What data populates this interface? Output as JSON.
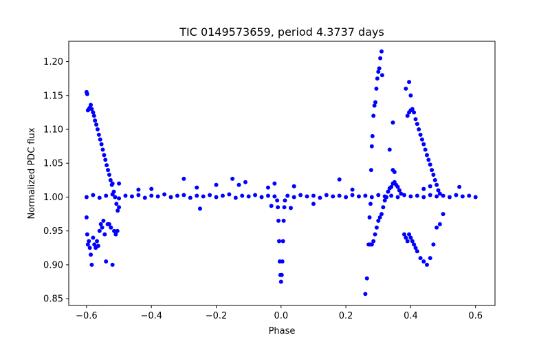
{
  "chart_data": {
    "type": "scatter",
    "title": "TIC 0149573659, period 4.3737 days",
    "xlabel": "Phase",
    "ylabel": "Normalized PDC flux",
    "xlim": [
      -0.655,
      0.66
    ],
    "ylim": [
      0.84,
      1.23
    ],
    "xticks": [
      -0.6,
      -0.4,
      -0.2,
      0.0,
      0.2,
      0.4,
      0.6
    ],
    "xtick_labels": [
      "−0.6",
      "−0.4",
      "−0.2",
      "0.0",
      "0.2",
      "0.4",
      "0.6"
    ],
    "yticks": [
      0.85,
      0.9,
      0.95,
      1.0,
      1.05,
      1.1,
      1.15,
      1.2
    ],
    "ytick_labels": [
      "0.85",
      "0.90",
      "0.95",
      "1.00",
      "1.05",
      "1.10",
      "1.15",
      "1.20"
    ],
    "marker_color": "#0000ff",
    "grid": false,
    "series": [
      {
        "name": "baseline",
        "points": [
          [
            -0.6,
            1.0
          ],
          [
            -0.58,
            1.003
          ],
          [
            -0.56,
            0.999
          ],
          [
            -0.54,
            1.002
          ],
          [
            -0.52,
            1.004
          ],
          [
            -0.5,
            0.998
          ],
          [
            -0.48,
            1.002
          ],
          [
            -0.46,
            1.001
          ],
          [
            -0.44,
            1.003
          ],
          [
            -0.42,
            0.999
          ],
          [
            -0.4,
            1.002
          ],
          [
            -0.38,
            1.001
          ],
          [
            -0.36,
            1.004
          ],
          [
            -0.34,
            1.0
          ],
          [
            -0.32,
            1.002
          ],
          [
            -0.3,
            1.003
          ],
          [
            -0.28,
            0.999
          ],
          [
            -0.26,
            1.002
          ],
          [
            -0.24,
            1.001
          ],
          [
            -0.22,
            1.003
          ],
          [
            -0.2,
            1.0
          ],
          [
            -0.18,
            1.002
          ],
          [
            -0.16,
            1.004
          ],
          [
            -0.14,
            0.999
          ],
          [
            -0.12,
            1.002
          ],
          [
            -0.1,
            1.001
          ],
          [
            -0.08,
            1.003
          ],
          [
            -0.06,
            1.0
          ],
          [
            -0.04,
            1.002
          ],
          [
            -0.02,
            1.001
          ],
          [
            0.02,
            1.002
          ],
          [
            0.04,
            1.0
          ],
          [
            0.06,
            1.003
          ],
          [
            0.08,
            1.001
          ],
          [
            0.1,
            1.002
          ],
          [
            0.12,
            0.999
          ],
          [
            0.14,
            1.003
          ],
          [
            0.16,
            1.001
          ],
          [
            0.18,
            1.002
          ],
          [
            0.2,
            1.0
          ],
          [
            0.22,
            1.003
          ],
          [
            0.24,
            1.001
          ],
          [
            0.26,
            1.002
          ],
          [
            0.28,
            1.0
          ],
          [
            0.3,
            1.003
          ],
          [
            0.32,
            1.001
          ],
          [
            0.34,
            1.002
          ],
          [
            0.36,
            1.0
          ],
          [
            0.38,
            1.003
          ],
          [
            0.4,
            1.001
          ],
          [
            0.42,
            1.002
          ],
          [
            0.44,
            1.0
          ],
          [
            0.46,
            1.003
          ],
          [
            0.48,
            1.001
          ],
          [
            0.5,
            1.002
          ],
          [
            0.52,
            1.0
          ],
          [
            0.54,
            1.003
          ],
          [
            0.56,
            1.001
          ],
          [
            0.58,
            1.002
          ],
          [
            0.6,
            1.0
          ]
        ]
      },
      {
        "name": "outliers",
        "points": [
          [
            -0.3,
            1.027
          ],
          [
            -0.26,
            1.014
          ],
          [
            -0.25,
            0.983
          ],
          [
            -0.2,
            1.018
          ],
          [
            -0.15,
            1.027
          ],
          [
            -0.13,
            1.018
          ],
          [
            -0.11,
            1.022
          ],
          [
            -0.04,
            1.014
          ],
          [
            -0.02,
            1.02
          ],
          [
            0.04,
            1.016
          ],
          [
            0.18,
            1.026
          ],
          [
            0.22,
            1.011
          ],
          [
            -0.4,
            1.012
          ],
          [
            -0.44,
            1.011
          ],
          [
            0.44,
            1.012
          ],
          [
            0.46,
            1.016
          ],
          [
            0.03,
            0.984
          ],
          [
            -0.03,
            0.987
          ],
          [
            0.1,
            0.99
          ],
          [
            -0.5,
            1.02
          ],
          [
            0.55,
            1.015
          ]
        ]
      },
      {
        "name": "primary-eclipse",
        "points": [
          [
            -0.012,
            0.995
          ],
          [
            -0.01,
            0.985
          ],
          [
            -0.008,
            0.965
          ],
          [
            -0.006,
            0.935
          ],
          [
            -0.004,
            0.905
          ],
          [
            -0.002,
            0.885
          ],
          [
            0.0,
            0.875
          ],
          [
            0.002,
            0.885
          ],
          [
            0.004,
            0.905
          ],
          [
            0.006,
            0.935
          ],
          [
            0.008,
            0.965
          ],
          [
            0.01,
            0.985
          ],
          [
            0.012,
            0.995
          ]
        ]
      },
      {
        "name": "left-upper-flare",
        "points": [
          [
            -0.6,
            1.155
          ],
          [
            -0.598,
            1.152
          ],
          [
            -0.596,
            1.128
          ],
          [
            -0.593,
            1.13
          ],
          [
            -0.59,
            1.132
          ],
          [
            -0.587,
            1.136
          ],
          [
            -0.584,
            1.13
          ],
          [
            -0.58,
            1.125
          ],
          [
            -0.577,
            1.12
          ],
          [
            -0.574,
            1.113
          ],
          [
            -0.57,
            1.107
          ],
          [
            -0.566,
            1.1
          ],
          [
            -0.562,
            1.092
          ],
          [
            -0.558,
            1.085
          ],
          [
            -0.554,
            1.078
          ],
          [
            -0.55,
            1.07
          ],
          [
            -0.546,
            1.062
          ],
          [
            -0.542,
            1.055
          ],
          [
            -0.538,
            1.047
          ],
          [
            -0.534,
            1.04
          ],
          [
            -0.53,
            1.033
          ],
          [
            -0.526,
            1.025
          ],
          [
            -0.522,
            1.018
          ],
          [
            -0.52,
            1.02
          ],
          [
            -0.516,
            1.008
          ],
          [
            -0.512,
            1.0
          ],
          [
            -0.508,
            0.99
          ],
          [
            -0.504,
            0.98
          ]
        ]
      },
      {
        "name": "left-lower-flare",
        "points": [
          [
            -0.6,
            0.97
          ],
          [
            -0.598,
            0.945
          ],
          [
            -0.596,
            0.93
          ],
          [
            -0.593,
            0.935
          ],
          [
            -0.59,
            0.925
          ],
          [
            -0.587,
            0.915
          ],
          [
            -0.584,
            0.9
          ],
          [
            -0.58,
            0.94
          ],
          [
            -0.576,
            0.93
          ],
          [
            -0.572,
            0.925
          ],
          [
            -0.568,
            0.935
          ],
          [
            -0.564,
            0.928
          ],
          [
            -0.56,
            0.95
          ],
          [
            -0.556,
            0.96
          ],
          [
            -0.552,
            0.955
          ],
          [
            -0.548,
            0.965
          ],
          [
            -0.544,
            0.945
          ],
          [
            -0.54,
            0.905
          ],
          [
            -0.535,
            0.96
          ],
          [
            -0.53,
            0.96
          ],
          [
            -0.525,
            0.955
          ],
          [
            -0.52,
            0.9
          ],
          [
            -0.515,
            0.95
          ],
          [
            -0.51,
            0.945
          ],
          [
            -0.505,
            0.95
          ],
          [
            -0.5,
            0.985
          ]
        ]
      },
      {
        "name": "right-rising-spike",
        "points": [
          [
            0.26,
            0.857
          ],
          [
            0.265,
            0.88
          ],
          [
            0.27,
            0.93
          ],
          [
            0.273,
            0.97
          ],
          [
            0.276,
            0.99
          ],
          [
            0.278,
            1.04
          ],
          [
            0.28,
            1.075
          ],
          [
            0.282,
            1.09
          ],
          [
            0.285,
            1.12
          ],
          [
            0.288,
            1.135
          ],
          [
            0.291,
            1.14
          ],
          [
            0.294,
            1.16
          ],
          [
            0.297,
            1.175
          ],
          [
            0.3,
            1.185
          ],
          [
            0.303,
            1.19
          ],
          [
            0.306,
            1.205
          ],
          [
            0.31,
            1.215
          ],
          [
            0.312,
            1.18
          ]
        ]
      },
      {
        "name": "right-lower-arc",
        "points": [
          [
            0.275,
            0.93
          ],
          [
            0.28,
            0.93
          ],
          [
            0.285,
            0.935
          ],
          [
            0.29,
            0.945
          ],
          [
            0.295,
            0.955
          ],
          [
            0.3,
            0.965
          ],
          [
            0.305,
            0.97
          ],
          [
            0.31,
            0.975
          ],
          [
            0.315,
            0.985
          ],
          [
            0.32,
            0.995
          ],
          [
            0.325,
            1.0
          ],
          [
            0.33,
            1.008
          ],
          [
            0.335,
            1.013
          ],
          [
            0.34,
            1.015
          ],
          [
            0.345,
            1.02
          ],
          [
            0.35,
            1.022
          ],
          [
            0.355,
            1.018
          ],
          [
            0.36,
            1.015
          ],
          [
            0.365,
            1.01
          ],
          [
            0.37,
            1.005
          ],
          [
            0.38,
            0.945
          ],
          [
            0.385,
            0.94
          ],
          [
            0.39,
            0.935
          ],
          [
            0.395,
            0.945
          ],
          [
            0.4,
            0.94
          ],
          [
            0.405,
            0.935
          ],
          [
            0.41,
            0.93
          ],
          [
            0.415,
            0.925
          ],
          [
            0.42,
            0.92
          ],
          [
            0.43,
            0.91
          ],
          [
            0.44,
            0.905
          ],
          [
            0.45,
            0.9
          ],
          [
            0.46,
            0.91
          ],
          [
            0.47,
            0.93
          ],
          [
            0.48,
            0.955
          ],
          [
            0.49,
            0.96
          ],
          [
            0.5,
            0.975
          ],
          [
            0.335,
            1.07
          ],
          [
            0.345,
            1.04
          ],
          [
            0.345,
            1.11
          ],
          [
            0.35,
            1.037
          ]
        ]
      },
      {
        "name": "right-upper-flare",
        "points": [
          [
            0.39,
            1.12
          ],
          [
            0.395,
            1.125
          ],
          [
            0.4,
            1.128
          ],
          [
            0.405,
            1.13
          ],
          [
            0.41,
            1.125
          ],
          [
            0.415,
            1.115
          ],
          [
            0.42,
            1.108
          ],
          [
            0.425,
            1.1
          ],
          [
            0.43,
            1.092
          ],
          [
            0.435,
            1.085
          ],
          [
            0.44,
            1.078
          ],
          [
            0.445,
            1.07
          ],
          [
            0.45,
            1.062
          ],
          [
            0.455,
            1.055
          ],
          [
            0.46,
            1.048
          ],
          [
            0.465,
            1.04
          ],
          [
            0.47,
            1.033
          ],
          [
            0.475,
            1.025
          ],
          [
            0.48,
            1.018
          ],
          [
            0.485,
            1.01
          ],
          [
            0.49,
            1.005
          ],
          [
            0.395,
            1.17
          ],
          [
            0.4,
            1.15
          ],
          [
            0.385,
            1.16
          ]
        ]
      }
    ]
  }
}
